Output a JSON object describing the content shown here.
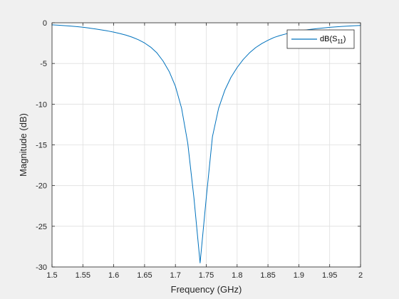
{
  "chart_data": {
    "type": "line",
    "title": "",
    "xlabel": "Frequency (GHz)",
    "ylabel": "Magnitude (dB)",
    "xlim": [
      1.5,
      2.0
    ],
    "ylim": [
      -30,
      0
    ],
    "xticks": [
      1.5,
      1.55,
      1.6,
      1.65,
      1.7,
      1.75,
      1.8,
      1.85,
      1.9,
      1.95,
      2.0
    ],
    "xtick_labels": [
      "1.5",
      "1.55",
      "1.6",
      "1.65",
      "1.7",
      "1.75",
      "1.8",
      "1.85",
      "1.9",
      "1.95",
      "2"
    ],
    "yticks": [
      0,
      -5,
      -10,
      -15,
      -20,
      -25,
      -30
    ],
    "ytick_labels": [
      "0",
      "-5",
      "-10",
      "-15",
      "-20",
      "-25",
      "-30"
    ],
    "grid": true,
    "legend_position": "top-right",
    "series": [
      {
        "name": "dB(S11)",
        "name_main": "dB(S",
        "name_sub": "11",
        "name_close": ")",
        "color": "#0072bd",
        "x": [
          1.5,
          1.51,
          1.52,
          1.53,
          1.54,
          1.55,
          1.56,
          1.57,
          1.58,
          1.59,
          1.6,
          1.61,
          1.62,
          1.63,
          1.64,
          1.65,
          1.66,
          1.67,
          1.68,
          1.69,
          1.7,
          1.71,
          1.72,
          1.73,
          1.74,
          1.75,
          1.76,
          1.77,
          1.78,
          1.79,
          1.8,
          1.81,
          1.82,
          1.83,
          1.84,
          1.85,
          1.86,
          1.87,
          1.88,
          1.89,
          1.9,
          1.91,
          1.92,
          1.93,
          1.94,
          1.95,
          1.96,
          1.97,
          1.98,
          1.99,
          2.0
        ],
        "y": [
          -0.25,
          -0.3,
          -0.35,
          -0.4,
          -0.47,
          -0.55,
          -0.65,
          -0.75,
          -0.87,
          -1.0,
          -1.15,
          -1.32,
          -1.52,
          -1.77,
          -2.08,
          -2.48,
          -3.0,
          -3.7,
          -4.7,
          -6.0,
          -7.8,
          -10.5,
          -14.8,
          -21.5,
          -29.5,
          -21.5,
          -14.0,
          -10.5,
          -8.3,
          -6.7,
          -5.5,
          -4.5,
          -3.7,
          -3.05,
          -2.55,
          -2.15,
          -1.8,
          -1.55,
          -1.35,
          -1.18,
          -1.02,
          -0.9,
          -0.8,
          -0.71,
          -0.63,
          -0.56,
          -0.5,
          -0.45,
          -0.4,
          -0.36,
          -0.33
        ]
      }
    ]
  }
}
